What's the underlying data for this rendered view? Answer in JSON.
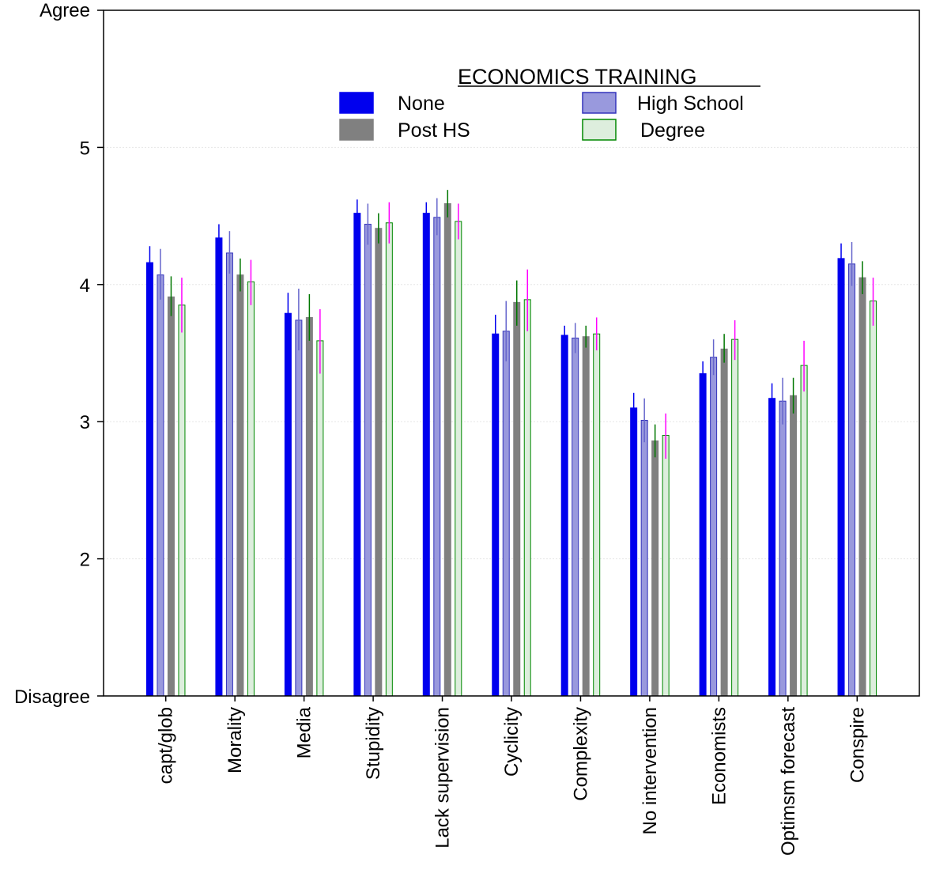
{
  "chart_data": {
    "type": "bar",
    "title": "",
    "xlabel": "",
    "ylabel": "",
    "ylim": [
      1,
      6
    ],
    "yticks": [
      2,
      3,
      4,
      5
    ],
    "y_extreme_labels": {
      "top": "Agree",
      "bottom": "Disagree"
    },
    "grid": true,
    "legend_placement": "top-center",
    "legend_title": "ECONOMICS TRAINING",
    "categories": [
      "capt/glob",
      "Morality",
      "Media",
      "Stupidity",
      "Lack supervision",
      "Cyclicity",
      "Complexity",
      "No intervention",
      "Economists",
      "Optimsm forecast",
      "Conspire"
    ],
    "series": [
      {
        "name": "None",
        "fill": "#0000ee",
        "stroke": "#0000ee",
        "error_color": "#0000ee",
        "values": [
          4.16,
          4.34,
          3.79,
          4.52,
          4.52,
          3.64,
          3.63,
          3.1,
          3.35,
          3.17,
          4.19
        ],
        "lower": [
          4.04,
          4.24,
          3.64,
          4.42,
          4.44,
          3.5,
          3.56,
          2.99,
          3.26,
          3.06,
          4.09
        ],
        "upper": [
          4.28,
          4.44,
          3.94,
          4.62,
          4.6,
          3.78,
          3.7,
          3.21,
          3.44,
          3.28,
          4.3
        ]
      },
      {
        "name": "High School",
        "fill": "#9999dd",
        "stroke": "#3333bb",
        "error_color": "#6666cc",
        "values": [
          4.07,
          4.23,
          3.74,
          4.44,
          4.49,
          3.66,
          3.61,
          3.01,
          3.47,
          3.15,
          4.15
        ],
        "lower": [
          3.89,
          4.08,
          3.52,
          4.29,
          4.36,
          3.44,
          3.5,
          2.85,
          3.34,
          2.98,
          3.99
        ],
        "upper": [
          4.26,
          4.39,
          3.97,
          4.59,
          4.63,
          3.88,
          3.72,
          3.17,
          3.6,
          3.32,
          4.31
        ]
      },
      {
        "name": "Post HS",
        "fill": "#808080",
        "stroke": "#808080",
        "error_color": "#007700",
        "values": [
          3.91,
          4.07,
          3.76,
          4.41,
          4.59,
          3.87,
          3.62,
          2.86,
          3.53,
          3.19,
          4.05
        ],
        "lower": [
          3.77,
          3.95,
          3.59,
          4.3,
          4.49,
          3.7,
          3.54,
          2.74,
          3.43,
          3.06,
          3.93
        ],
        "upper": [
          4.06,
          4.19,
          3.93,
          4.52,
          4.69,
          4.03,
          3.7,
          2.98,
          3.64,
          3.32,
          4.17
        ]
      },
      {
        "name": "Degree",
        "fill": "#ddeedd",
        "stroke": "#008800",
        "error_color": "#ff00ff",
        "values": [
          3.85,
          4.02,
          3.59,
          4.45,
          4.46,
          3.89,
          3.64,
          2.9,
          3.6,
          3.41,
          3.88
        ],
        "lower": [
          3.65,
          3.85,
          3.35,
          4.3,
          4.33,
          3.66,
          3.52,
          2.73,
          3.45,
          3.22,
          3.7
        ],
        "upper": [
          4.05,
          4.18,
          3.82,
          4.6,
          4.59,
          4.11,
          3.76,
          3.06,
          3.74,
          3.59,
          4.05
        ]
      }
    ]
  }
}
